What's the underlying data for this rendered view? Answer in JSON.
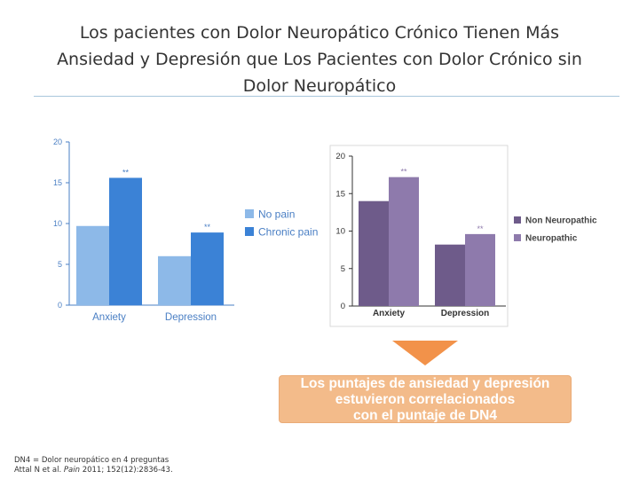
{
  "title": {
    "line1": "Los pacientes con Dolor Neuropático Crónico  Tienen Más",
    "line2": "Ansiedad y Depresión que Los Pacientes con Dolor Crónico sin",
    "line3": "Dolor Neuropático"
  },
  "chart_data": [
    {
      "type": "bar",
      "categories": [
        "Anxiety",
        "Depression"
      ],
      "series": [
        {
          "name": "No pain",
          "values": [
            9.7,
            6.0
          ],
          "color": "#8db9e8"
        },
        {
          "name": "Chronic pain",
          "values": [
            15.6,
            8.9
          ],
          "color": "#3b82d6"
        }
      ],
      "significance": [
        "**",
        "**"
      ],
      "yticks": [
        0,
        5,
        10,
        15,
        20
      ],
      "ylim": [
        0,
        20
      ],
      "legend": "right"
    },
    {
      "type": "bar",
      "categories": [
        "Anxiety",
        "Depression"
      ],
      "series": [
        {
          "name": "Non Neuropathic",
          "values": [
            14.0,
            8.2
          ],
          "color": "#6e5b8a"
        },
        {
          "name": "Neuropathic",
          "values": [
            17.2,
            9.6
          ],
          "color": "#8e7aac"
        }
      ],
      "significance": [
        "**",
        "**"
      ],
      "yticks": [
        0,
        5,
        10,
        15,
        20
      ],
      "ylim": [
        0,
        20
      ],
      "legend": "right"
    }
  ],
  "callout": {
    "line1": "Los puntajes de ansiedad y depresión",
    "line2": "estuvieron correlacionados",
    "line3": "con el puntaje de DN4"
  },
  "footnote": {
    "line1": "DN4 = Dolor neuropático en 4 preguntas",
    "authors": "Attal N et al.",
    "journal": "Pain",
    "citation": "2011; 152(12):2836-43."
  },
  "colors": {
    "arrow": "#f2924a",
    "callout_bg": "#f2b27a",
    "rule": "#a9c7db"
  }
}
